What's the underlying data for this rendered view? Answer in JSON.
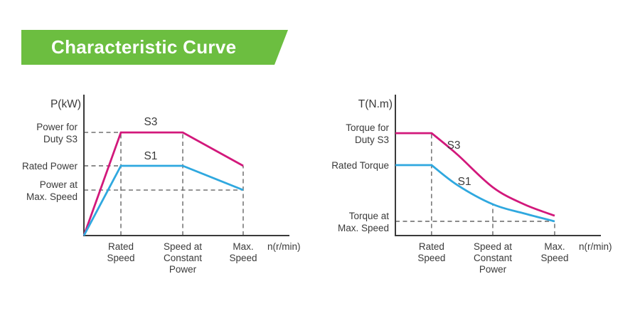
{
  "banner": {
    "title": "Characteristic Curve",
    "bg_color": "#6CBE40",
    "text_color": "#FFFFFF"
  },
  "colors": {
    "s3": "#D2187B",
    "s1": "#2FA8DF",
    "axis": "#3A3A3A",
    "dashed": "#666666",
    "text": "#3A3A3A"
  },
  "charts": [
    {
      "id": "power-chart",
      "y_axis_unit": "P(kW)",
      "x_axis_unit": "n(r/min)",
      "y_tick_labels": [
        {
          "lines": [
            "Power for",
            "Duty S3"
          ],
          "level": 0.732
        },
        {
          "lines": [
            "Rated Power"
          ],
          "level": 0.495
        },
        {
          "lines": [
            "Power at",
            "Max. Speed"
          ],
          "level": 0.323
        }
      ],
      "x_tick_labels": [
        {
          "lines": [
            "Rated",
            "Speed"
          ],
          "pos": 0.18
        },
        {
          "lines": [
            "Speed at",
            "Constant",
            "Power"
          ],
          "pos": 0.481
        },
        {
          "lines": [
            "Max.",
            "Speed"
          ],
          "pos": 0.775
        }
      ],
      "chart_data": {
        "type": "line",
        "title": "Power characteristic curve",
        "xlabel": "n(r/min)",
        "ylabel": "P(kW)",
        "x_key_points": [
          "Rated Speed",
          "Speed at Constant Power",
          "Max. Speed"
        ],
        "y_key_levels": [
          "Power at Max. Speed",
          "Rated Power",
          "Power for Duty S3"
        ],
        "grid": false,
        "legend": "inline-labels",
        "series": [
          {
            "name": "S3",
            "color_key": "s3",
            "smooth_from": null,
            "points": [
              [
                0,
                0
              ],
              [
                0.18,
                0.732
              ],
              [
                0.481,
                0.732
              ],
              [
                0.775,
                0.495
              ]
            ],
            "label_pos": [
              0.325,
              0.808
            ]
          },
          {
            "name": "S1",
            "color_key": "s1",
            "smooth_from": null,
            "points": [
              [
                0,
                0
              ],
              [
                0.18,
                0.495
              ],
              [
                0.481,
                0.495
              ],
              [
                0.775,
                0.323
              ]
            ],
            "label_pos": [
              0.325,
              0.566
            ]
          }
        ],
        "dashed_v": [
          {
            "x": 0.18,
            "to": 0.732
          },
          {
            "x": 0.481,
            "to": 0.732
          },
          {
            "x": 0.775,
            "to": 0.495
          }
        ],
        "dashed_h": [
          {
            "y": 0.732,
            "to": 0.18
          },
          {
            "y": 0.495,
            "to": 0.18
          },
          {
            "y": 0.323,
            "to": 0.775
          }
        ]
      }
    },
    {
      "id": "torque-chart",
      "y_axis_unit": "T(N.m)",
      "x_axis_unit": "n(r/min)",
      "y_tick_labels": [
        {
          "lines": [
            "Torque for",
            "Duty S3"
          ],
          "level": 0.727
        },
        {
          "lines": [
            "Rated Torque"
          ],
          "level": 0.5
        },
        {
          "lines": [
            "Torque at",
            "Max. Speed"
          ],
          "level": 0.101
        }
      ],
      "x_tick_labels": [
        {
          "lines": [
            "Rated",
            "Speed"
          ],
          "pos": 0.176
        },
        {
          "lines": [
            "Speed at",
            "Constant",
            "Power"
          ],
          "pos": 0.474
        },
        {
          "lines": [
            "Max.",
            "Speed"
          ],
          "pos": 0.775
        }
      ],
      "chart_data": {
        "type": "line",
        "title": "Torque characteristic curve",
        "xlabel": "n(r/min)",
        "ylabel": "T(N.m)",
        "x_key_points": [
          "Rated Speed",
          "Speed at Constant Power",
          "Max. Speed"
        ],
        "y_key_levels": [
          "Torque at Max. Speed",
          "Rated Torque",
          "Torque for Duty S3"
        ],
        "grid": false,
        "legend": "inline-labels",
        "series": [
          {
            "name": "S3",
            "color_key": "s3",
            "smooth_from": 1,
            "points": [
              [
                0,
                0.727
              ],
              [
                0.176,
                0.727
              ],
              [
                0.301,
                0.576
              ],
              [
                0.474,
                0.343
              ],
              [
                0.626,
                0.222
              ],
              [
                0.775,
                0.141
              ]
            ],
            "label_pos": [
              0.284,
              0.641
            ]
          },
          {
            "name": "S1",
            "color_key": "s1",
            "smooth_from": 1,
            "points": [
              [
                0,
                0.5
              ],
              [
                0.176,
                0.5
              ],
              [
                0.301,
                0.359
              ],
              [
                0.474,
                0.222
              ],
              [
                0.626,
                0.157
              ],
              [
                0.775,
                0.101
              ]
            ],
            "label_pos": [
              0.336,
              0.385
            ]
          }
        ],
        "dashed_v": [
          {
            "x": 0.176,
            "to": 0.727
          },
          {
            "x": 0.474,
            "to": 0.222
          },
          {
            "x": 0.775,
            "to": 0.101
          }
        ],
        "dashed_h": [
          {
            "y": 0.101,
            "to": 0.775
          }
        ]
      }
    }
  ]
}
